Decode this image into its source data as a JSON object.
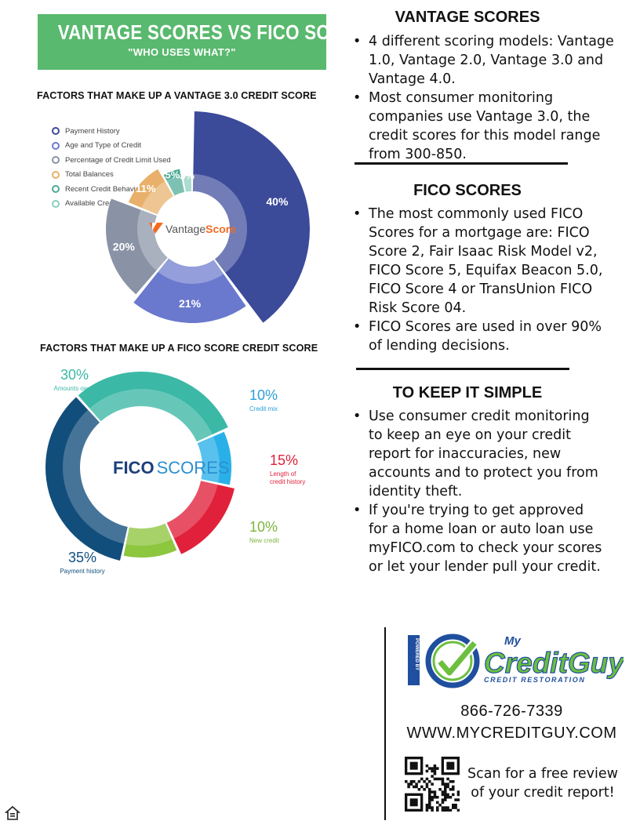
{
  "header": {
    "title": "VANTAGE SCORES VS FICO SCORES",
    "subtitle": "\"WHO USES WHAT?\""
  },
  "vantage_section": {
    "heading": "FACTORS THAT MAKE UP A VANTAGE 3.0 CREDIT SCORE",
    "logo_text_a": "Vantage",
    "logo_text_b": "Score"
  },
  "fico_section": {
    "heading": "FACTORS THAT MAKE UP A FICO SCORE CREDIT SCORE",
    "logo_text_a": "FICO",
    "logo_text_b": "SCORES"
  },
  "chart_data": [
    {
      "type": "pie",
      "variant": "radial-donut",
      "categories": [
        "Payment History",
        "Age and Type of Credit",
        "Percentage of Credit Limit Used",
        "Total Balances",
        "Recent Credit Behavior",
        "Available Credit"
      ],
      "values": [
        40,
        21,
        20,
        11,
        5,
        3
      ],
      "labels": [
        "40%",
        "21%",
        "20%",
        "11%",
        "5%",
        "3%"
      ],
      "colors": [
        "#3c4a9a",
        "#6a79cd",
        "#8a93a5",
        "#e8b06a",
        "#4caa95",
        "#8ccdbd"
      ],
      "legend_placement": "top-left"
    },
    {
      "type": "pie",
      "variant": "donut",
      "categories": [
        "Amounts owed",
        "Credit mix",
        "Length of credit history",
        "New credit",
        "Payment history"
      ],
      "values": [
        30,
        10,
        15,
        10,
        35
      ],
      "labels": [
        "30%",
        "10%",
        "15%",
        "10%",
        "35%"
      ],
      "colors": [
        "#3bb8a6",
        "#2ab0e8",
        "#e1213b",
        "#8dc63f",
        "#124e7c"
      ],
      "label_colors": [
        "#3bb8a6",
        "#2b9fd9",
        "#e1213b",
        "#7db53b",
        "#124e7c"
      ]
    }
  ],
  "vantage_scores": {
    "heading": "VANTAGE SCORES",
    "bullets": [
      "4 different scoring models: Vantage 1.0, Vantage 2.0, Vantage 3.0 and Vantage 4.0.",
      "Most consumer monitoring companies use Vantage 3.0, the credit scores for this model range from 300-850."
    ]
  },
  "fico_scores": {
    "heading": "FICO SCORES",
    "bullets": [
      "The most commonly used FICO Scores for a mortgage are: FICO Score 2, Fair Isaac Risk Model v2, FICO Score 5, Equifax Beacon 5.0, FICO Score 4 or TransUnion FICO Risk Score 04.",
      "FICO Scores are used in over 90% of lending decisions."
    ]
  },
  "keep_simple": {
    "heading": "TO KEEP IT SIMPLE",
    "bullets": [
      "Use consumer credit monitoring to keep an eye on your credit report for inaccuracies, new accounts and to protect you from identity theft.",
      "If you're trying to get approved for a home loan or auto loan use myFICO.com to check your scores or let your lender pull your credit."
    ]
  },
  "brand": {
    "powered_by": "POWERED BY",
    "my": "My",
    "name": "CreditGuy",
    "tagline": "CREDIT RESTORATION"
  },
  "contact": {
    "phone": "866-726-7339",
    "website": "WWW.MYCREDITGUY.COM",
    "scan_text": "Scan for a free review of your credit report!"
  },
  "colors": {
    "banner": "#59b96e",
    "brand_green": "#6cbf3f",
    "brand_blue": "#1f4f9e"
  },
  "icons": [
    "equal-housing-icon",
    "qr-code-icon",
    "checkmark-icon"
  ]
}
